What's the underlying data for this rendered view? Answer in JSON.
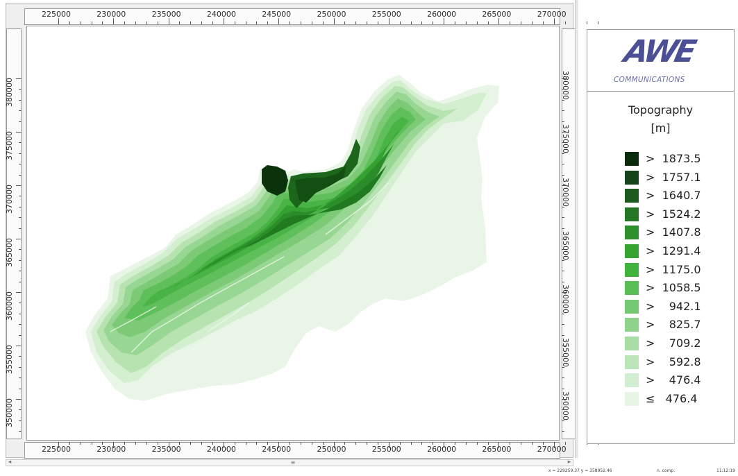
{
  "map": {
    "x_ticks": [
      "225000",
      "230000",
      "235000",
      "240000",
      "245000",
      "250000",
      "255000",
      "260000",
      "265000",
      "270000"
    ],
    "y_ticks": [
      "380000",
      "375000",
      "370000",
      "365000",
      "360000",
      "355000",
      "350000"
    ],
    "region_colors": [
      "#e9f6e7",
      "#d3efcf",
      "#b7e3b1",
      "#98d693",
      "#7dca76",
      "#5fbf5a",
      "#49b345",
      "#35a132",
      "#2b8d29",
      "#217a20",
      "#1b661b",
      "#134f13",
      "#0b330b"
    ]
  },
  "scrollbar": {
    "left_arrow": "◂",
    "right_arrow": "▸",
    "thumb": "≡"
  },
  "status": {
    "coords": "x = 229259.37 y = 358952.46",
    "mode": "n. comp.",
    "time": "11:12:19"
  },
  "legend": {
    "logo_text": "AWE",
    "logo_subtitle": "COMMUNICATIONS",
    "title": "Topography",
    "unit": "[m]",
    "classes": [
      {
        "label": ">  1873.5",
        "color": "#0c2a0c"
      },
      {
        "label": ">  1757.1",
        "color": "#15431a"
      },
      {
        "label": ">  1640.7",
        "color": "#1c5a1e"
      },
      {
        "label": ">  1524.2",
        "color": "#247625"
      },
      {
        "label": ">  1407.8",
        "color": "#2b8f2c"
      },
      {
        "label": ">  1291.4",
        "color": "#35a433"
      },
      {
        "label": ">  1175.0",
        "color": "#3fb33e"
      },
      {
        "label": ">  1058.5",
        "color": "#57bd55"
      },
      {
        "label": ">    942.1",
        "color": "#75c872"
      },
      {
        "label": ">    825.7",
        "color": "#8ed28b"
      },
      {
        "label": ">    709.2",
        "color": "#a7dca4"
      },
      {
        "label": ">    592.8",
        "color": "#bde5ba"
      },
      {
        "label": ">    476.4",
        "color": "#d2edd0"
      },
      {
        "label": "≤   476.4",
        "color": "#e7f5e5"
      }
    ]
  }
}
